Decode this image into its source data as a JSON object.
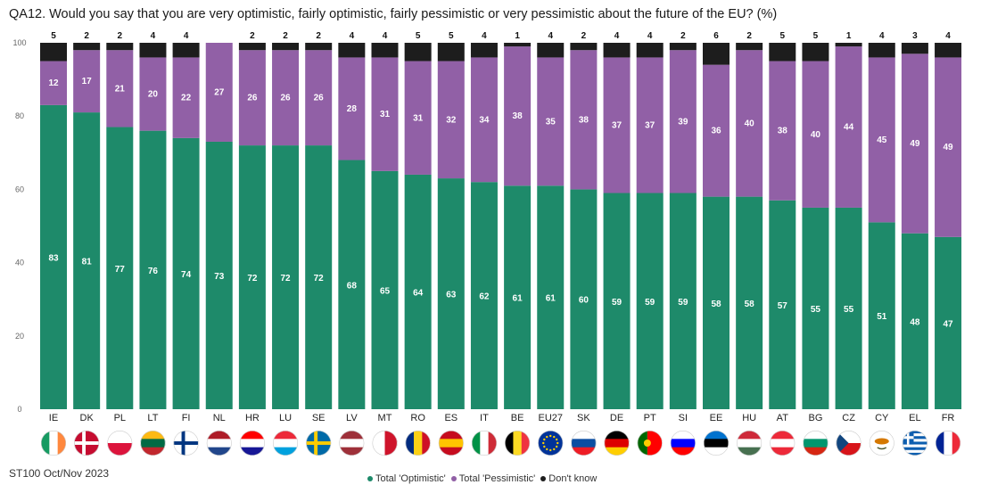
{
  "title": "QA12. Would you say that you are very optimistic, fairly optimistic, fairly pessimistic or very pessimistic about the future of the EU? (%)",
  "footnote": "ST100 Oct/Nov 2023",
  "colors": {
    "optimistic": "#1e8a6a",
    "pessimistic": "#9160a6",
    "dont_know": "#1d1d1d"
  },
  "legend": [
    {
      "label": "Total 'Optimistic'",
      "color": "#1e8a6a"
    },
    {
      "label": "Total 'Pessimistic'",
      "color": "#9160a6"
    },
    {
      "label": "Don't know",
      "color": "#1d1d1d"
    }
  ],
  "chart_data": {
    "type": "bar",
    "stacked": true,
    "title": "QA12. Would you say that you are very optimistic, fairly optimistic, fairly pessimistic or very pessimistic about the future of the EU? (%)",
    "ylim": [
      0,
      100
    ],
    "yticks": [
      0,
      20,
      40,
      60,
      80,
      100
    ],
    "grid": false,
    "legend_position": "bottom",
    "categories": [
      "IE",
      "DK",
      "PL",
      "LT",
      "FI",
      "NL",
      "HR",
      "LU",
      "SE",
      "LV",
      "MT",
      "RO",
      "ES",
      "IT",
      "BE",
      "EU27",
      "SK",
      "DE",
      "PT",
      "SI",
      "EE",
      "HU",
      "AT",
      "BG",
      "CZ",
      "CY",
      "EL",
      "FR"
    ],
    "series": [
      {
        "name": "Total 'Optimistic'",
        "values": [
          83,
          81,
          77,
          76,
          74,
          73,
          72,
          72,
          72,
          68,
          65,
          64,
          63,
          62,
          61,
          61,
          60,
          59,
          59,
          59,
          58,
          58,
          57,
          55,
          55,
          51,
          48,
          47
        ]
      },
      {
        "name": "Total 'Pessimistic'",
        "values": [
          12,
          17,
          21,
          20,
          22,
          27,
          26,
          26,
          26,
          28,
          31,
          31,
          32,
          34,
          38,
          35,
          38,
          37,
          37,
          39,
          36,
          40,
          38,
          40,
          44,
          45,
          49,
          49
        ]
      },
      {
        "name": "Don't know",
        "values": [
          5,
          2,
          2,
          4,
          4,
          0,
          2,
          2,
          2,
          4,
          4,
          5,
          5,
          4,
          1,
          4,
          2,
          4,
          4,
          2,
          6,
          2,
          5,
          5,
          1,
          4,
          3,
          4
        ]
      }
    ],
    "top_labels": [
      "5",
      "2",
      "2",
      "4",
      "4",
      "",
      "2",
      "2",
      "2",
      "4",
      "4",
      "5",
      "5",
      "4",
      "1",
      "4",
      "2",
      "4",
      "4",
      "2",
      "6",
      "2",
      "5",
      "5",
      "1",
      "4",
      "3",
      "4"
    ]
  },
  "flags": [
    {
      "code": "IE",
      "colors": [
        "#169b62",
        "#ffffff",
        "#ff883e"
      ],
      "dir": "v"
    },
    {
      "code": "DK",
      "colors": [
        "#c60c30",
        "#ffffff"
      ],
      "dir": "cross"
    },
    {
      "code": "PL",
      "colors": [
        "#ffffff",
        "#dc143c"
      ],
      "dir": "h"
    },
    {
      "code": "LT",
      "colors": [
        "#fdb913",
        "#006a44",
        "#c1272d"
      ],
      "dir": "h"
    },
    {
      "code": "FI",
      "colors": [
        "#ffffff",
        "#003580"
      ],
      "dir": "cross"
    },
    {
      "code": "NL",
      "colors": [
        "#ae1c28",
        "#ffffff",
        "#21468b"
      ],
      "dir": "h"
    },
    {
      "code": "HR",
      "colors": [
        "#ff0000",
        "#ffffff",
        "#171796"
      ],
      "dir": "h"
    },
    {
      "code": "LU",
      "colors": [
        "#ed2939",
        "#ffffff",
        "#00a1de"
      ],
      "dir": "h"
    },
    {
      "code": "SE",
      "colors": [
        "#006aa7",
        "#fecc00"
      ],
      "dir": "cross"
    },
    {
      "code": "LV",
      "colors": [
        "#9e3039",
        "#ffffff",
        "#9e3039"
      ],
      "dir": "h"
    },
    {
      "code": "MT",
      "colors": [
        "#ffffff",
        "#cf142b"
      ],
      "dir": "v"
    },
    {
      "code": "RO",
      "colors": [
        "#002b7f",
        "#fcd116",
        "#ce1126"
      ],
      "dir": "v"
    },
    {
      "code": "ES",
      "colors": [
        "#c60b1e",
        "#ffc400",
        "#c60b1e"
      ],
      "dir": "h"
    },
    {
      "code": "IT",
      "colors": [
        "#009246",
        "#ffffff",
        "#ce2b37"
      ],
      "dir": "v"
    },
    {
      "code": "BE",
      "colors": [
        "#000000",
        "#fdda24",
        "#ef3340"
      ],
      "dir": "v"
    },
    {
      "code": "EU27",
      "colors": [
        "#003399",
        "#ffcc00"
      ],
      "dir": "eu"
    },
    {
      "code": "SK",
      "colors": [
        "#ffffff",
        "#0b4ea2",
        "#ee1c25"
      ],
      "dir": "h"
    },
    {
      "code": "DE",
      "colors": [
        "#000000",
        "#dd0000",
        "#ffce00"
      ],
      "dir": "h"
    },
    {
      "code": "PT",
      "colors": [
        "#006600",
        "#ff0000"
      ],
      "dir": "v2"
    },
    {
      "code": "SI",
      "colors": [
        "#ffffff",
        "#0000ff",
        "#ff0000"
      ],
      "dir": "h"
    },
    {
      "code": "EE",
      "colors": [
        "#0072ce",
        "#000000",
        "#ffffff"
      ],
      "dir": "h"
    },
    {
      "code": "HU",
      "colors": [
        "#ce2939",
        "#ffffff",
        "#477050"
      ],
      "dir": "h"
    },
    {
      "code": "AT",
      "colors": [
        "#ed2939",
        "#ffffff",
        "#ed2939"
      ],
      "dir": "h"
    },
    {
      "code": "BG",
      "colors": [
        "#ffffff",
        "#00966e",
        "#d62612"
      ],
      "dir": "h"
    },
    {
      "code": "CZ",
      "colors": [
        "#ffffff",
        "#d7141a",
        "#11457e"
      ],
      "dir": "cz"
    },
    {
      "code": "CY",
      "colors": [
        "#ffffff",
        "#d57800"
      ],
      "dir": "cy"
    },
    {
      "code": "EL",
      "colors": [
        "#0d5eaf",
        "#ffffff"
      ],
      "dir": "gr"
    },
    {
      "code": "FR",
      "colors": [
        "#002395",
        "#ffffff",
        "#ed2939"
      ],
      "dir": "v"
    }
  ]
}
